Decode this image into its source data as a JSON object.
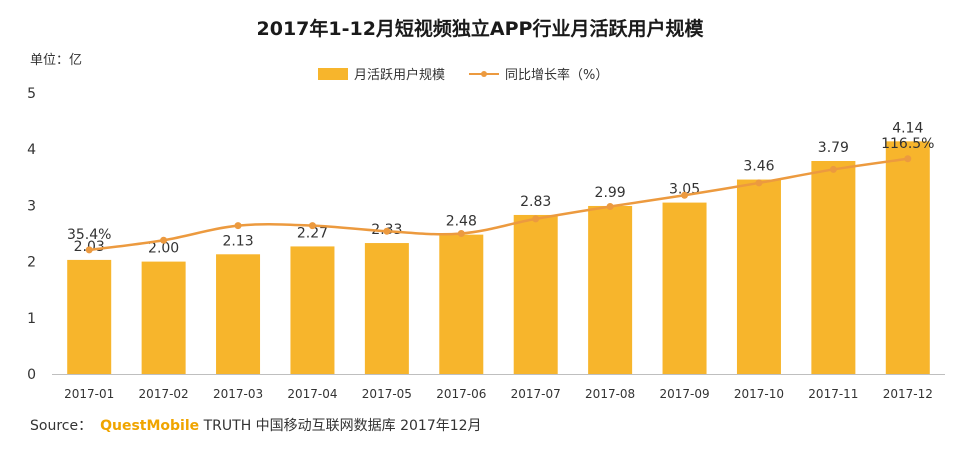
{
  "chart_data": {
    "type": "bar",
    "title": "2017年1-12月短视频独立APP行业月活跃用户规模",
    "unit_label": "单位：亿",
    "categories": [
      "2017-01",
      "2017-02",
      "2017-03",
      "2017-04",
      "2017-05",
      "2017-06",
      "2017-07",
      "2017-08",
      "2017-09",
      "2017-10",
      "2017-11",
      "2017-12"
    ],
    "series": [
      {
        "name": "月活跃用户规模",
        "type": "bar",
        "axis": "left",
        "color": "#f7b52c",
        "values": [
          2.03,
          2.0,
          2.13,
          2.27,
          2.33,
          2.48,
          2.83,
          2.99,
          3.05,
          3.46,
          3.79,
          4.14
        ],
        "labels": [
          "2.03",
          "2.00",
          "2.13",
          "2.27",
          "2.33",
          "2.48",
          "2.83",
          "2.99",
          "3.05",
          "3.46",
          "3.79",
          "4.14"
        ]
      },
      {
        "name": "同比增长率（%）",
        "type": "line",
        "axis": "right",
        "color": "#ec9a3f",
        "values": [
          35.4,
          44,
          57,
          57,
          52,
          50,
          63,
          74,
          84,
          95,
          107,
          116.5
        ],
        "point_labels": [
          {
            "index": 0,
            "text": "35.4%"
          },
          {
            "index": 11,
            "text": "116.5%"
          }
        ]
      }
    ],
    "ylim": [
      0,
      5
    ],
    "yticks": [
      "0",
      "1",
      "2",
      "3",
      "4",
      "5"
    ],
    "y2lim": [
      -75,
      175
    ],
    "legend": "top-center",
    "grid": false
  },
  "source": {
    "prefix": "Source：",
    "brand": "QuestMobile",
    "text": "TRUTH 中国移动互联网数据库 2017年12月"
  }
}
